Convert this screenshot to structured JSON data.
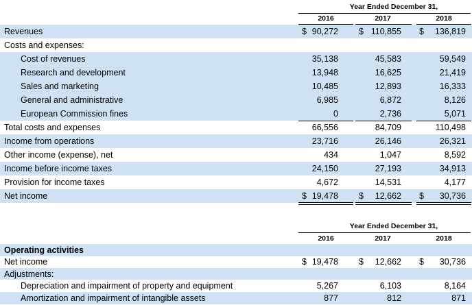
{
  "table1": {
    "period_header": "Year Ended December 31,",
    "years": [
      "2016",
      "2017",
      "2018"
    ],
    "currency": "$",
    "rows": [
      {
        "label": "Revenues",
        "v2016": "90,272",
        "v2017": "110,855",
        "v2018": "136,819"
      },
      {
        "label": "Costs and expenses:",
        "v2016": "",
        "v2017": "",
        "v2018": ""
      },
      {
        "label": "Cost of revenues",
        "v2016": "35,138",
        "v2017": "45,583",
        "v2018": "59,549"
      },
      {
        "label": "Research and development",
        "v2016": "13,948",
        "v2017": "16,625",
        "v2018": "21,419"
      },
      {
        "label": "Sales and marketing",
        "v2016": "10,485",
        "v2017": "12,893",
        "v2018": "16,333"
      },
      {
        "label": "General and administrative",
        "v2016": "6,985",
        "v2017": "6,872",
        "v2018": "8,126"
      },
      {
        "label": "European Commission fines",
        "v2016": "0",
        "v2017": "2,736",
        "v2018": "5,071"
      },
      {
        "label": "Total costs and expenses",
        "v2016": "66,556",
        "v2017": "84,709",
        "v2018": "110,498"
      },
      {
        "label": "Income from operations",
        "v2016": "23,716",
        "v2017": "26,146",
        "v2018": "26,321"
      },
      {
        "label": "Other income (expense), net",
        "v2016": "434",
        "v2017": "1,047",
        "v2018": "8,592"
      },
      {
        "label": "Income before income taxes",
        "v2016": "24,150",
        "v2017": "27,193",
        "v2018": "34,913"
      },
      {
        "label": "Provision for income taxes",
        "v2016": "4,672",
        "v2017": "14,531",
        "v2018": "4,177"
      },
      {
        "label": "Net income",
        "v2016": "19,478",
        "v2017": "12,662",
        "v2018": "30,736"
      }
    ]
  },
  "table2": {
    "period_header": "Year Ended December 31,",
    "years": [
      "2016",
      "2017",
      "2018"
    ],
    "currency": "$",
    "rows": [
      {
        "label": "Operating activities",
        "v2016": "",
        "v2017": "",
        "v2018": ""
      },
      {
        "label": "Net income",
        "v2016": "19,478",
        "v2017": "12,662",
        "v2018": "30,736"
      },
      {
        "label": "Adjustments:",
        "v2016": "",
        "v2017": "",
        "v2018": ""
      },
      {
        "label": "Depreciation and impairment of property and equipment",
        "v2016": "5,267",
        "v2017": "6,103",
        "v2018": "8,164"
      },
      {
        "label": "Amortization and impairment of intangible assets",
        "v2016": "877",
        "v2017": "812",
        "v2018": "871"
      }
    ]
  }
}
